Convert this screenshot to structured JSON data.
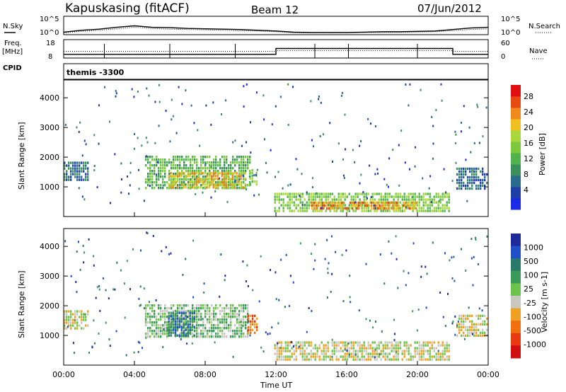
{
  "header": {
    "station": "Kapuskasing (fitACF)",
    "beam": "Beam 12",
    "date": "07/Jun/2012"
  },
  "labels": {
    "nsky": "N.Sky",
    "nsearch": "N.Search",
    "freq": "Freq.",
    "freq_unit": "[MHz]",
    "nave": "Nave",
    "cpid": "CPID",
    "cpid_value": "themis -3300",
    "xlabel": "Time UT"
  },
  "colors": {
    "power": [
      "#1a2ae6",
      "#1f3fa8",
      "#2a6a8c",
      "#3a8f5a",
      "#4fb34a",
      "#7cc93e",
      "#a8d83a",
      "#f0c020",
      "#f08a1a",
      "#e84a14",
      "#e01010"
    ],
    "velocity": [
      "#1c2a9a",
      "#2050c8",
      "#2a7a6a",
      "#3a9a5a",
      "#6cc24a",
      "#c8c8c0",
      "#f0a020",
      "#f07010",
      "#e83a10",
      "#d01010"
    ]
  },
  "chart_data": [
    {
      "type": "line",
      "panel": "noise",
      "x": [
        0,
        1,
        2,
        3,
        4,
        5,
        6,
        7,
        8,
        9,
        10,
        11,
        12,
        13,
        14,
        15,
        16,
        17,
        18,
        19,
        20,
        21,
        22,
        23,
        24
      ],
      "series": [
        {
          "name": "N.Sky",
          "values": [
            0.7,
            1.2,
            1.5,
            2.0,
            2.4,
            2.0,
            1.9,
            1.7,
            1.6,
            1.5,
            1.4,
            1.2,
            1.0,
            0.7,
            0.6,
            0.6,
            0.6,
            0.7,
            0.8,
            0.8,
            0.9,
            1.0,
            1.4,
            1.8,
            2.0
          ]
        },
        {
          "name": "N.Search",
          "values": [
            0.5,
            0.9,
            1.2,
            1.6,
            2.0,
            1.7,
            1.5,
            1.4,
            1.3,
            1.2,
            1.1,
            1.0,
            0.8,
            0.5,
            0.5,
            0.5,
            0.5,
            0.6,
            0.6,
            0.6,
            0.7,
            0.8,
            1.1,
            1.4,
            1.6
          ]
        }
      ],
      "ylim_left": [
        "10^0",
        "10^5"
      ],
      "ylim_right": [
        "10^0",
        "10^5"
      ]
    },
    {
      "type": "line",
      "panel": "frequency",
      "x": [
        0,
        12,
        12,
        22,
        22,
        24
      ],
      "series": [
        {
          "name": "Freq.",
          "values": [
            10.0,
            10.0,
            13.2,
            13.2,
            10.0,
            10.0
          ]
        },
        {
          "name": "Nave",
          "values": [
            22,
            22,
            24,
            24,
            22,
            22
          ]
        }
      ],
      "yticks_left": [
        8,
        18
      ],
      "yticks_right": [
        0,
        60
      ],
      "scan_markers_hours": [
        2.3,
        6.0,
        9.7,
        14.2,
        16.1,
        20.0
      ]
    },
    {
      "type": "heatmap",
      "panel": "power",
      "ylabel": "Slant Range [km]",
      "colorbar_label": "Power [dB]",
      "colorbar_ticks": [
        4,
        8,
        12,
        16,
        20,
        24,
        28
      ],
      "yticks": [
        1000,
        2000,
        3000,
        4000
      ],
      "regions": [
        {
          "t0": 0.0,
          "t1": 1.4,
          "r0": 1150,
          "r1": 1850,
          "level": 2
        },
        {
          "t0": 4.6,
          "t1": 10.6,
          "r0": 900,
          "r1": 2050,
          "level": 4
        },
        {
          "t0": 5.9,
          "t1": 10.3,
          "r0": 950,
          "r1": 1500,
          "level": 7
        },
        {
          "t0": 10.5,
          "t1": 11.0,
          "r0": 1050,
          "r1": 1600,
          "level": 5
        },
        {
          "t0": 11.9,
          "t1": 21.8,
          "r0": 180,
          "r1": 800,
          "level": 5
        },
        {
          "t0": 14.0,
          "t1": 20.0,
          "r0": 250,
          "r1": 500,
          "level": 8
        },
        {
          "t0": 22.2,
          "t1": 24.0,
          "r0": 900,
          "r1": 1650,
          "level": 2
        }
      ]
    },
    {
      "type": "heatmap",
      "panel": "velocity",
      "ylabel": "Slant Range [km]",
      "colorbar_label": "Velocity [m s-1]",
      "colorbar_ticks": [
        1000,
        500,
        100,
        25,
        -25,
        -100,
        -500,
        -1000
      ],
      "yticks": [
        1000,
        2000,
        3000,
        4000
      ],
      "xticks": [
        "00:00",
        "04:00",
        "08:00",
        "12:00",
        "16:00",
        "20:00",
        "00:00"
      ],
      "xlabel": "Time UT",
      "regions": [
        {
          "t0": 0.0,
          "t1": 1.4,
          "r0": 1150,
          "r1": 1850,
          "level": 5
        },
        {
          "t0": 4.6,
          "t1": 10.5,
          "r0": 900,
          "r1": 2050,
          "level": 4
        },
        {
          "t0": 5.9,
          "t1": 7.5,
          "r0": 950,
          "r1": 1800,
          "level": 2
        },
        {
          "t0": 10.4,
          "t1": 11.0,
          "r0": 1050,
          "r1": 1700,
          "level": 7
        },
        {
          "t0": 11.9,
          "t1": 21.8,
          "r0": 180,
          "r1": 800,
          "level": 5
        },
        {
          "t0": 22.2,
          "t1": 24.0,
          "r0": 900,
          "r1": 1700,
          "level": 5
        }
      ]
    }
  ]
}
